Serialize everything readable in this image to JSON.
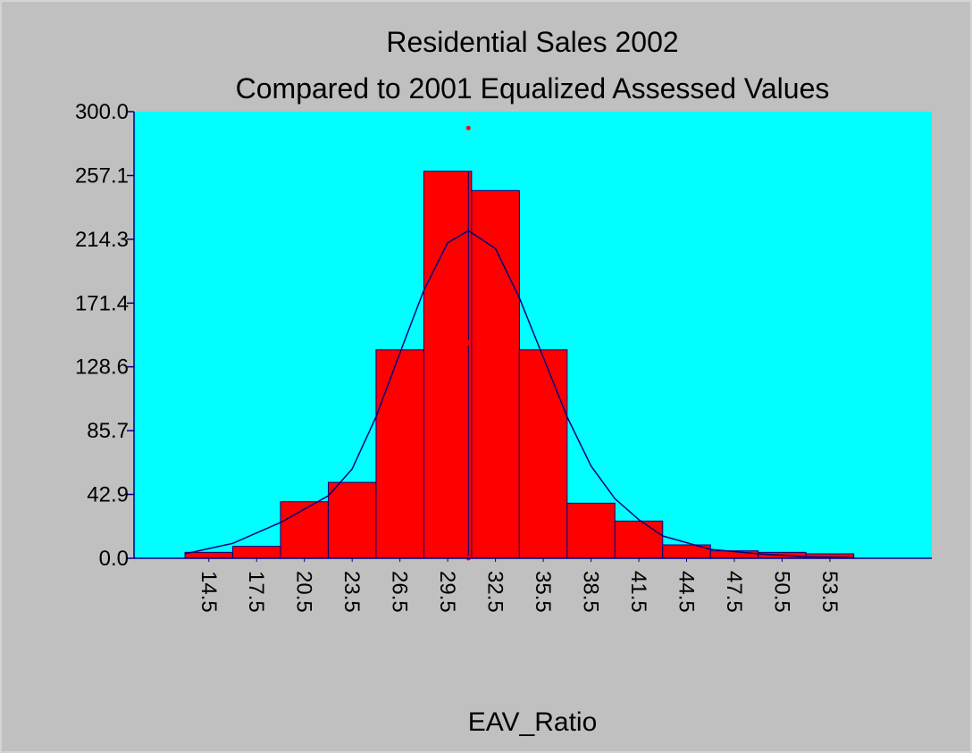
{
  "chart_data": {
    "type": "histogram",
    "title": "Residential Sales 2002",
    "subtitle": "Compared to 2001 Equalized  Assessed Values",
    "xlabel": "EAV_Ratio",
    "bins": [
      13,
      16,
      19,
      22,
      25,
      28,
      31,
      34,
      37,
      40,
      43,
      46,
      49,
      52,
      55
    ],
    "values": [
      4,
      8,
      38,
      51,
      140,
      260,
      247,
      140,
      37,
      25,
      9,
      5,
      4,
      3
    ],
    "color": "#ff0000",
    "edge_color": "#000080",
    "xlim": [
      9.8,
      59.9
    ],
    "xticks": [
      14.5,
      17.5,
      20.5,
      23.5,
      26.5,
      29.5,
      32.5,
      35.5,
      38.5,
      41.5,
      44.5,
      47.5,
      50.5,
      53.5
    ],
    "ylim": [
      0,
      300
    ],
    "yticks": [
      {
        "value": 0,
        "label": "0.0"
      },
      42.9,
      85.7,
      128.6,
      171.4,
      214.3,
      257.1,
      {
        "value": 300,
        "label": "300.0"
      }
    ],
    "curve": {
      "color": "#000080",
      "x": [
        13,
        16,
        19,
        22,
        23.5,
        25,
        26.5,
        28,
        29.5,
        30.8,
        32.5,
        34,
        35.5,
        37,
        38.5,
        40,
        41.5,
        43,
        46,
        49,
        52,
        55
      ],
      "values": [
        3,
        10,
        24,
        42,
        60,
        95,
        138,
        180,
        212,
        220,
        208,
        175,
        135,
        95,
        62,
        40,
        26,
        15,
        6,
        3,
        1,
        0.5
      ]
    },
    "reference": {
      "x": 30.8,
      "values": [
        0,
        145,
        289
      ],
      "color": "#ff0000"
    }
  }
}
